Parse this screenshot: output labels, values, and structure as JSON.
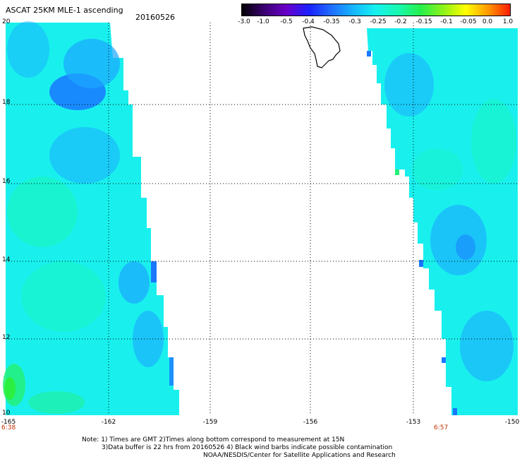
{
  "header": {
    "title": "ASCAT 25KM MLE-1 ascending",
    "date": "20160526"
  },
  "colorbar": {
    "ticks": [
      "-3.0",
      "-1.0",
      "-0.5",
      "-0.4",
      "-0.35",
      "-0.3",
      "-0.25",
      "-0.2",
      "-0.15",
      "-0.1",
      "-0.05",
      "0.0",
      "1.0"
    ],
    "colors": [
      "#000000",
      "#3a0070",
      "#6a00c8",
      "#1a20ff",
      "#1f6dff",
      "#16b6ff",
      "#16f2ee",
      "#18f8b0",
      "#25f04a",
      "#8cf21a",
      "#ffff00",
      "#ff9a00",
      "#ff1a00"
    ]
  },
  "axes": {
    "y_labels": [
      "20",
      "18",
      "16",
      "14",
      "12",
      "10"
    ],
    "x_labels": [
      "-165",
      "-162",
      "-159",
      "-156",
      "-153",
      "-150"
    ]
  },
  "times": {
    "left": "6:38",
    "right": "6:57"
  },
  "notes": [
    "Note: 1) Times are GMT 2)Times along bottom correspond to measurement at 15N",
    "3)Data buffer is 22 hrs from 20160526 4) Black wind barbs indicate possible contamination",
    "NOAA/NESDIS/Center for Satellite Applications and Research"
  ],
  "map_colors": {
    "swath_base": "#19f0ee",
    "cyan_light": "#16e8f4",
    "blue_mid": "#1ba6ff",
    "blue_deep": "#1a78ff",
    "green_teal": "#19f6b8",
    "green": "#24f078",
    "green_bright": "#2ef032",
    "grid": "#000000"
  }
}
